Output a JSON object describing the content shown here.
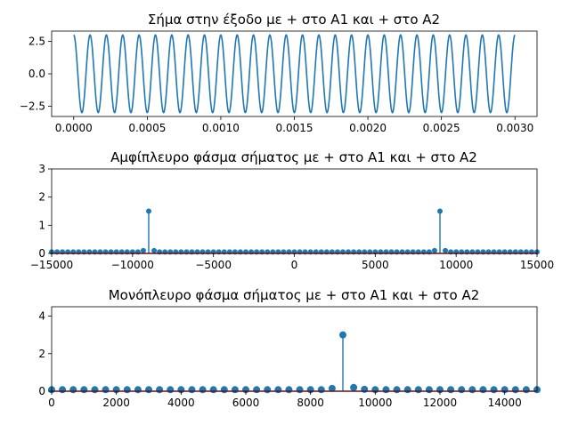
{
  "chart_data": [
    {
      "type": "line",
      "title": "Σήμα στην έξοδο με + στο A1 και + στο A2",
      "xlabel": "",
      "ylabel": "",
      "xlim": [
        -0.00015,
        0.00315
      ],
      "ylim": [
        -3.3,
        3.3
      ],
      "xticks": [
        0.0,
        0.0005,
        0.001,
        0.0015,
        0.002,
        0.0025,
        0.003
      ],
      "xtick_labels": [
        "0.0000",
        "0.0005",
        "0.0010",
        "0.0015",
        "0.0020",
        "0.0025",
        "0.0030"
      ],
      "yticks": [
        -2.5,
        0.0,
        2.5
      ],
      "ytick_labels": [
        "−2.5",
        "0.0",
        "2.5"
      ],
      "series": [
        {
          "function": "3*cos(2*pi*9000*t)",
          "t_range": [
            0,
            0.003
          ],
          "color": "#1f77b4"
        }
      ],
      "grid": false
    },
    {
      "type": "stem",
      "title": "Αμφίπλευρο φάσμα σήματος με + στο A1 και + στο A2",
      "xlabel": "",
      "ylabel": "",
      "xlim": [
        -15000,
        15000
      ],
      "ylim": [
        0,
        3
      ],
      "xticks": [
        -15000,
        -10000,
        -5000,
        0,
        5000,
        10000,
        15000
      ],
      "xtick_labels": [
        "−15000",
        "−10000",
        "−5000",
        "0",
        "5000",
        "10000",
        "15000"
      ],
      "yticks": [
        0,
        1,
        2,
        3
      ],
      "ytick_labels": [
        "0",
        "1",
        "2",
        "3"
      ],
      "bin_spacing": 333.33,
      "peaks": [
        {
          "x": -9000,
          "y": 1.5
        },
        {
          "x": 9000,
          "y": 1.5
        }
      ],
      "near_peak": [
        {
          "x": -9333.33,
          "y": 0.1
        },
        {
          "x": -8666.67,
          "y": 0.1
        },
        {
          "x": 8666.67,
          "y": 0.1
        },
        {
          "x": 9333.33,
          "y": 0.1
        }
      ],
      "baseline_value": 0.05,
      "color": "#1f77b4",
      "baseline_color": "#d62728",
      "grid": false
    },
    {
      "type": "stem",
      "title": "Μονόπλευρο φάσμα σήματος με + στο A1 και + στο A2",
      "xlabel": "",
      "ylabel": "",
      "xlim": [
        0,
        15000
      ],
      "ylim": [
        0,
        4.5
      ],
      "xticks": [
        0,
        2000,
        4000,
        6000,
        8000,
        10000,
        12000,
        14000
      ],
      "xtick_labels": [
        "0",
        "2000",
        "4000",
        "6000",
        "8000",
        "10000",
        "12000",
        "14000"
      ],
      "yticks": [
        0,
        2,
        4
      ],
      "ytick_labels": [
        "0",
        "2",
        "4"
      ],
      "bin_spacing": 333.33,
      "peaks": [
        {
          "x": 9000,
          "y": 3.0
        }
      ],
      "near_peak": [
        {
          "x": 8666.67,
          "y": 0.15
        },
        {
          "x": 9333.33,
          "y": 0.2
        },
        {
          "x": 9666.67,
          "y": 0.1
        },
        {
          "x": 10000,
          "y": 0.08
        }
      ],
      "baseline_value": 0.08,
      "color": "#1f77b4",
      "baseline_color": "#d62728",
      "grid": false
    }
  ]
}
